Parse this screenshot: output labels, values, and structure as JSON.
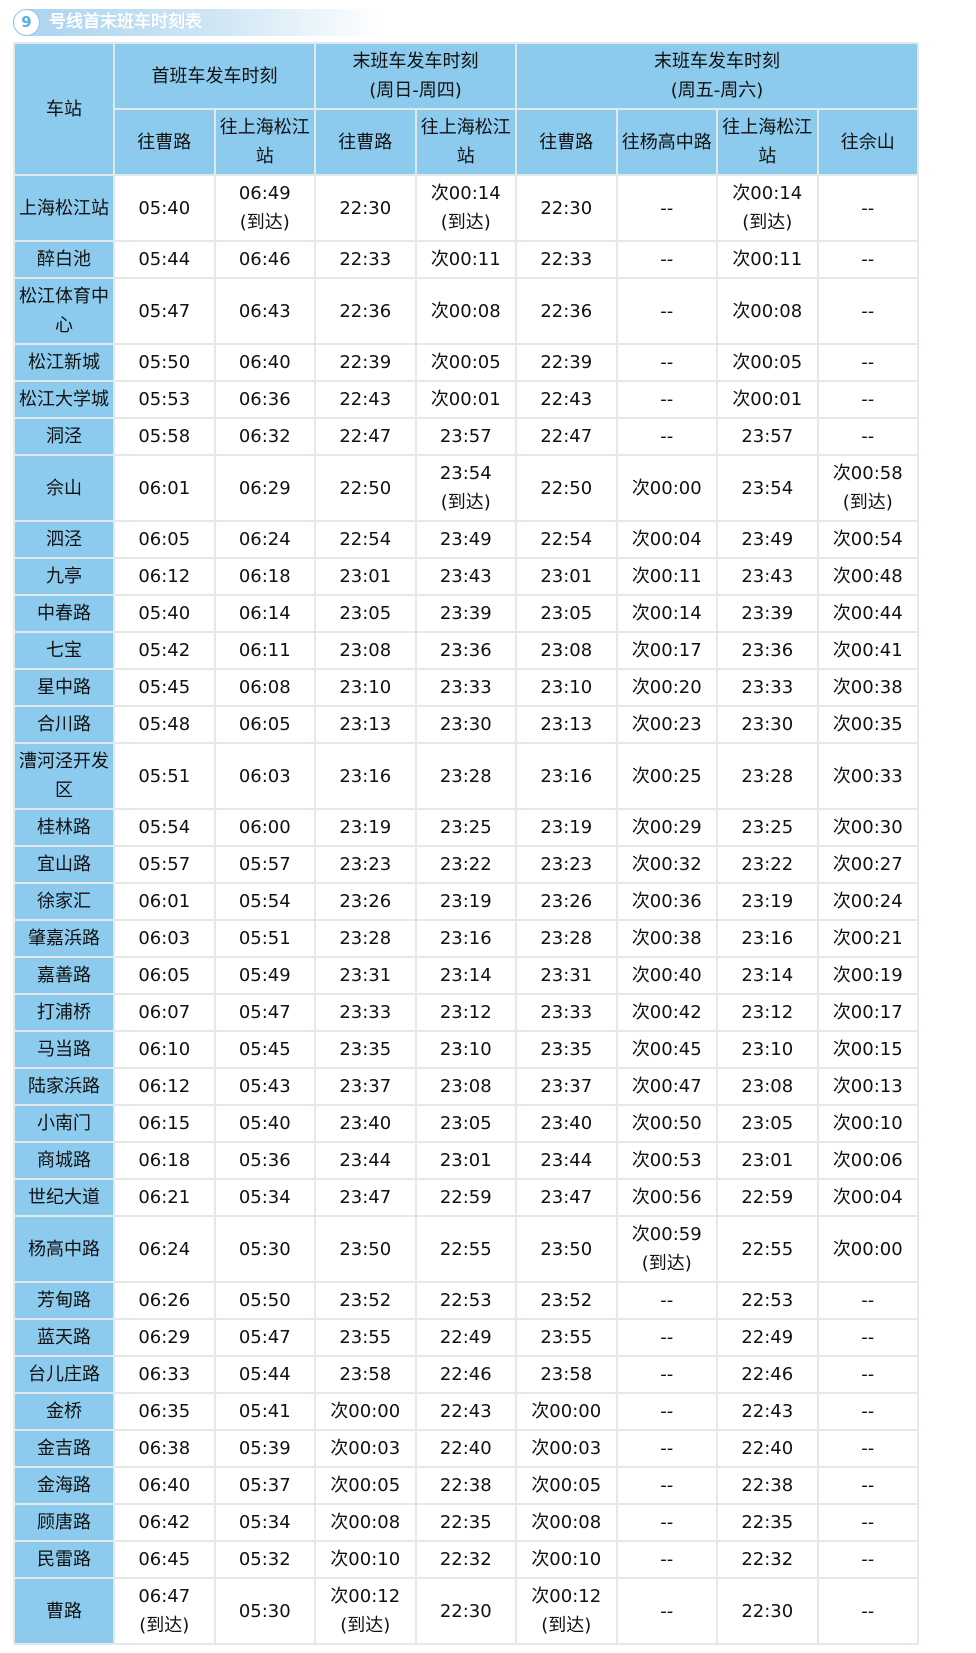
{
  "title": {
    "number": "9",
    "text": "号线首末班车时刻表"
  },
  "colors": {
    "header_bg": "#8ccbee",
    "grid": "#e3e8ec"
  },
  "header": {
    "station": "车站",
    "first": "首班车发车时刻",
    "last_sun_thu": "末班车发车时刻\n(周日-周四)",
    "last_fri_sat": "末班车发车时刻\n(周五-周六)",
    "sub": [
      "往曹路",
      "往上海松江站",
      "往曹路",
      "往上海松江站",
      "往曹路",
      "往杨高中路",
      "往上海松江站",
      "往佘山"
    ]
  },
  "rows": [
    [
      "上海松江站",
      "05:40",
      "06:49\n(到达)",
      "22:30",
      "次00:14\n(到达)",
      "22:30",
      "--",
      "次00:14\n(到达)",
      "--"
    ],
    [
      "醉白池",
      "05:44",
      "06:46",
      "22:33",
      "次00:11",
      "22:33",
      "--",
      "次00:11",
      "--"
    ],
    [
      "松江体育中心",
      "05:47",
      "06:43",
      "22:36",
      "次00:08",
      "22:36",
      "--",
      "次00:08",
      "--"
    ],
    [
      "松江新城",
      "05:50",
      "06:40",
      "22:39",
      "次00:05",
      "22:39",
      "--",
      "次00:05",
      "--"
    ],
    [
      "松江大学城",
      "05:53",
      "06:36",
      "22:43",
      "次00:01",
      "22:43",
      "--",
      "次00:01",
      "--"
    ],
    [
      "洞泾",
      "05:58",
      "06:32",
      "22:47",
      "23:57",
      "22:47",
      "--",
      "23:57",
      "--"
    ],
    [
      "佘山",
      "06:01",
      "06:29",
      "22:50",
      "23:54\n(到达)",
      "22:50",
      "次00:00",
      "23:54",
      "次00:58\n(到达)"
    ],
    [
      "泗泾",
      "06:05",
      "06:24",
      "22:54",
      "23:49",
      "22:54",
      "次00:04",
      "23:49",
      "次00:54"
    ],
    [
      "九亭",
      "06:12",
      "06:18",
      "23:01",
      "23:43",
      "23:01",
      "次00:11",
      "23:43",
      "次00:48"
    ],
    [
      "中春路",
      "05:40",
      "06:14",
      "23:05",
      "23:39",
      "23:05",
      "次00:14",
      "23:39",
      "次00:44"
    ],
    [
      "七宝",
      "05:42",
      "06:11",
      "23:08",
      "23:36",
      "23:08",
      "次00:17",
      "23:36",
      "次00:41"
    ],
    [
      "星中路",
      "05:45",
      "06:08",
      "23:10",
      "23:33",
      "23:10",
      "次00:20",
      "23:33",
      "次00:38"
    ],
    [
      "合川路",
      "05:48",
      "06:05",
      "23:13",
      "23:30",
      "23:13",
      "次00:23",
      "23:30",
      "次00:35"
    ],
    [
      "漕河泾开发区",
      "05:51",
      "06:03",
      "23:16",
      "23:28",
      "23:16",
      "次00:25",
      "23:28",
      "次00:33"
    ],
    [
      "桂林路",
      "05:54",
      "06:00",
      "23:19",
      "23:25",
      "23:19",
      "次00:29",
      "23:25",
      "次00:30"
    ],
    [
      "宜山路",
      "05:57",
      "05:57",
      "23:23",
      "23:22",
      "23:23",
      "次00:32",
      "23:22",
      "次00:27"
    ],
    [
      "徐家汇",
      "06:01",
      "05:54",
      "23:26",
      "23:19",
      "23:26",
      "次00:36",
      "23:19",
      "次00:24"
    ],
    [
      "肇嘉浜路",
      "06:03",
      "05:51",
      "23:28",
      "23:16",
      "23:28",
      "次00:38",
      "23:16",
      "次00:21"
    ],
    [
      "嘉善路",
      "06:05",
      "05:49",
      "23:31",
      "23:14",
      "23:31",
      "次00:40",
      "23:14",
      "次00:19"
    ],
    [
      "打浦桥",
      "06:07",
      "05:47",
      "23:33",
      "23:12",
      "23:33",
      "次00:42",
      "23:12",
      "次00:17"
    ],
    [
      "马当路",
      "06:10",
      "05:45",
      "23:35",
      "23:10",
      "23:35",
      "次00:45",
      "23:10",
      "次00:15"
    ],
    [
      "陆家浜路",
      "06:12",
      "05:43",
      "23:37",
      "23:08",
      "23:37",
      "次00:47",
      "23:08",
      "次00:13"
    ],
    [
      "小南门",
      "06:15",
      "05:40",
      "23:40",
      "23:05",
      "23:40",
      "次00:50",
      "23:05",
      "次00:10"
    ],
    [
      "商城路",
      "06:18",
      "05:36",
      "23:44",
      "23:01",
      "23:44",
      "次00:53",
      "23:01",
      "次00:06"
    ],
    [
      "世纪大道",
      "06:21",
      "05:34",
      "23:47",
      "22:59",
      "23:47",
      "次00:56",
      "22:59",
      "次00:04"
    ],
    [
      "杨高中路",
      "06:24",
      "05:30",
      "23:50",
      "22:55",
      "23:50",
      "次00:59\n(到达)",
      "22:55",
      "次00:00"
    ],
    [
      "芳甸路",
      "06:26",
      "05:50",
      "23:52",
      "22:53",
      "23:52",
      "--",
      "22:53",
      "--"
    ],
    [
      "蓝天路",
      "06:29",
      "05:47",
      "23:55",
      "22:49",
      "23:55",
      "--",
      "22:49",
      "--"
    ],
    [
      "台儿庄路",
      "06:33",
      "05:44",
      "23:58",
      "22:46",
      "23:58",
      "--",
      "22:46",
      "--"
    ],
    [
      "金桥",
      "06:35",
      "05:41",
      "次00:00",
      "22:43",
      "次00:00",
      "--",
      "22:43",
      "--"
    ],
    [
      "金吉路",
      "06:38",
      "05:39",
      "次00:03",
      "22:40",
      "次00:03",
      "--",
      "22:40",
      "--"
    ],
    [
      "金海路",
      "06:40",
      "05:37",
      "次00:05",
      "22:38",
      "次00:05",
      "--",
      "22:38",
      "--"
    ],
    [
      "顾唐路",
      "06:42",
      "05:34",
      "次00:08",
      "22:35",
      "次00:08",
      "--",
      "22:35",
      "--"
    ],
    [
      "民雷路",
      "06:45",
      "05:32",
      "次00:10",
      "22:32",
      "次00:10",
      "--",
      "22:32",
      "--"
    ],
    [
      "曹路",
      "06:47\n(到达)",
      "05:30",
      "次00:12\n(到达)",
      "22:30",
      "次00:12\n(到达)",
      "--",
      "22:30",
      "--"
    ]
  ]
}
